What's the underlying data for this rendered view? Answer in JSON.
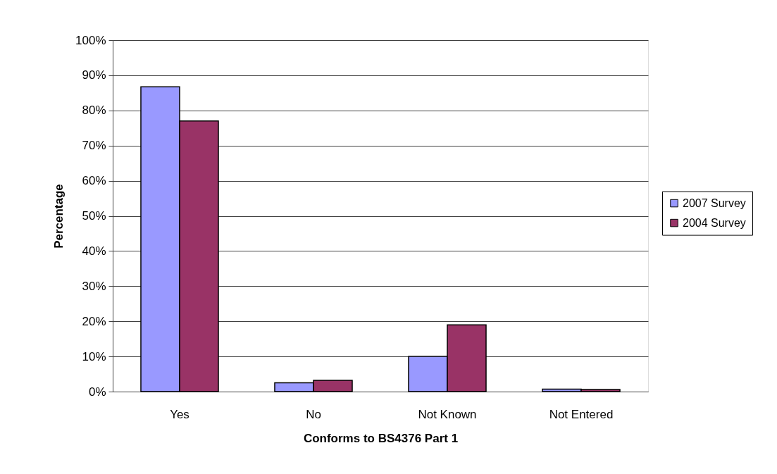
{
  "chart_data": {
    "type": "bar",
    "xlabel": "Conforms to BS4376 Part 1",
    "ylabel": "Percentage",
    "categories": [
      "Yes",
      "No",
      "Not Known",
      "Not Entered"
    ],
    "series": [
      {
        "name": "2007 Survey",
        "color": "#9999ff",
        "values": [
          86.7,
          2.5,
          10,
          0.7
        ]
      },
      {
        "name": "2004 Survey",
        "color": "#993366",
        "values": [
          77,
          3.2,
          19,
          0.6
        ]
      }
    ],
    "ylim": [
      0,
      100
    ],
    "yticks": [
      {
        "value": 0,
        "label": "0%"
      },
      {
        "value": 10,
        "label": "10%"
      },
      {
        "value": 20,
        "label": "20%"
      },
      {
        "value": 30,
        "label": "30%"
      },
      {
        "value": 40,
        "label": "40%"
      },
      {
        "value": 50,
        "label": "50%"
      },
      {
        "value": 60,
        "label": "60%"
      },
      {
        "value": 70,
        "label": "70%"
      },
      {
        "value": 80,
        "label": "80%"
      },
      {
        "value": 90,
        "label": "90%"
      },
      {
        "value": 100,
        "label": "100%"
      }
    ],
    "grid": "y",
    "legend": "right"
  }
}
